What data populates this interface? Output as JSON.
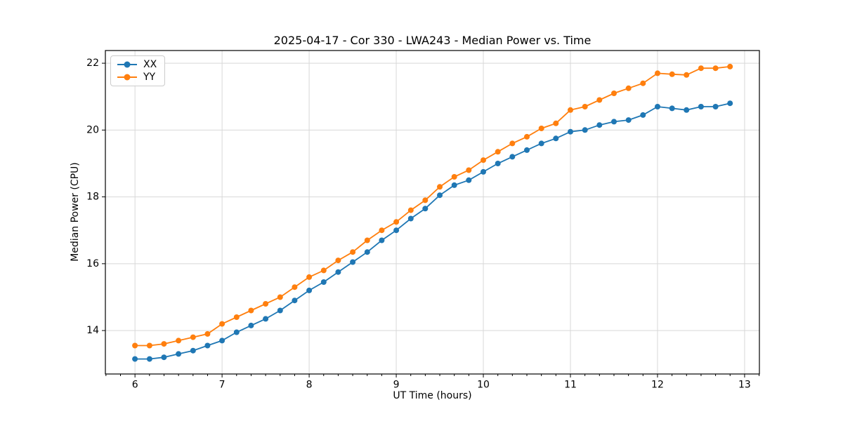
{
  "chart_data": {
    "type": "line",
    "title": "2025-04-17 - Cor 330 - LWA243 - Median Power vs. Time",
    "xlabel": "UT Time (hours)",
    "ylabel": "Median Power (CPU)",
    "xlim": [
      5.66,
      13.17
    ],
    "ylim": [
      12.7,
      22.38
    ],
    "xticks": [
      6,
      7,
      8,
      9,
      10,
      11,
      12,
      13
    ],
    "yticks": [
      14,
      16,
      18,
      20,
      22
    ],
    "x_minor_tick_step": 0.1667,
    "grid": true,
    "legend_position": "upper left",
    "x": [
      6.0,
      6.167,
      6.333,
      6.5,
      6.667,
      6.833,
      7.0,
      7.167,
      7.333,
      7.5,
      7.667,
      7.833,
      8.0,
      8.167,
      8.333,
      8.5,
      8.667,
      8.833,
      9.0,
      9.167,
      9.333,
      9.5,
      9.667,
      9.833,
      10.0,
      10.167,
      10.333,
      10.5,
      10.667,
      10.833,
      11.0,
      11.167,
      11.333,
      11.5,
      11.667,
      11.833,
      12.0,
      12.167,
      12.333,
      12.5,
      12.667,
      12.833
    ],
    "series": [
      {
        "name": "XX",
        "color": "#1f77b4",
        "values": [
          13.15,
          13.15,
          13.2,
          13.3,
          13.4,
          13.55,
          13.7,
          13.95,
          14.15,
          14.35,
          14.6,
          14.9,
          15.2,
          15.45,
          15.75,
          16.05,
          16.35,
          16.7,
          17.0,
          17.35,
          17.65,
          18.05,
          18.35,
          18.5,
          18.75,
          19.0,
          19.2,
          19.4,
          19.6,
          19.75,
          19.95,
          20.0,
          20.15,
          20.25,
          20.3,
          20.45,
          20.7,
          20.65,
          20.6,
          20.7,
          20.7,
          20.8
        ]
      },
      {
        "name": "YY",
        "color": "#ff7f0e",
        "values": [
          13.55,
          13.55,
          13.6,
          13.7,
          13.8,
          13.9,
          14.2,
          14.4,
          14.6,
          14.8,
          15.0,
          15.3,
          15.6,
          15.8,
          16.1,
          16.35,
          16.7,
          17.0,
          17.25,
          17.6,
          17.9,
          18.3,
          18.6,
          18.8,
          19.1,
          19.35,
          19.6,
          19.8,
          20.05,
          20.2,
          20.6,
          20.7,
          20.9,
          21.1,
          21.25,
          21.4,
          21.7,
          21.67,
          21.65,
          21.85,
          21.85,
          21.9
        ]
      }
    ]
  }
}
